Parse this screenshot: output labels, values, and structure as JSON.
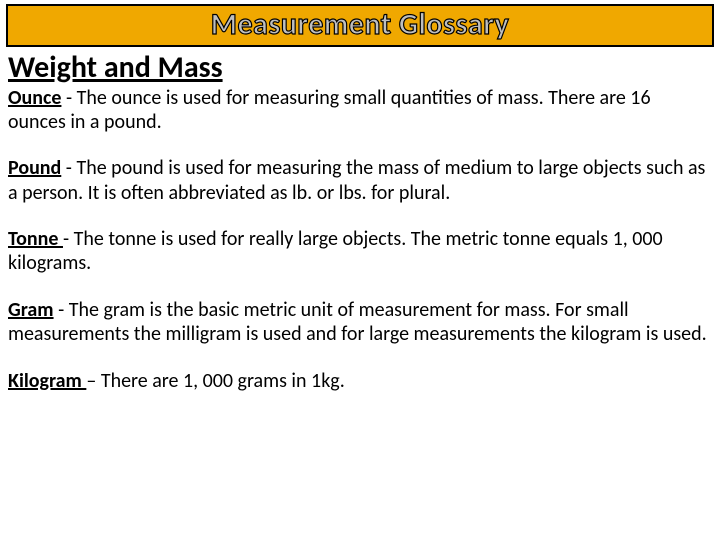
{
  "banner": {
    "title": "Measurement Glossary",
    "bg_color": "#f0a800",
    "border_color": "#000000",
    "text_fill": "#bfbfbf",
    "text_stroke": "#000000"
  },
  "section": {
    "title": "Weight and Mass"
  },
  "entries": [
    {
      "term": "Ounce",
      "sep": " - ",
      "definition": "The ounce is used for measuring small quantities of mass. There are 16 ounces in a pound."
    },
    {
      "term": "Pound",
      "sep": " - ",
      "definition": "The pound is used for measuring the mass of medium to large objects such as a person. It is often abbreviated as lb. or lbs. for plural."
    },
    {
      "term": "Tonne ",
      "sep": "- ",
      "definition": "The tonne is used for really large objects. The metric tonne equals 1, 000 kilograms."
    },
    {
      "term": "Gram",
      "sep": " - ",
      "definition": "The gram is the basic metric unit of measurement for mass. For small measurements the milligram is used and for large measurements the kilogram is used."
    },
    {
      "term": "Kilogram ",
      "sep": "– ",
      "definition": "There are 1, 000 grams in 1kg."
    }
  ],
  "typography": {
    "body_font": "Calibri",
    "banner_fontsize": 30,
    "section_fontsize": 30,
    "entry_fontsize": 20,
    "text_color": "#000000",
    "background_color": "#ffffff"
  }
}
